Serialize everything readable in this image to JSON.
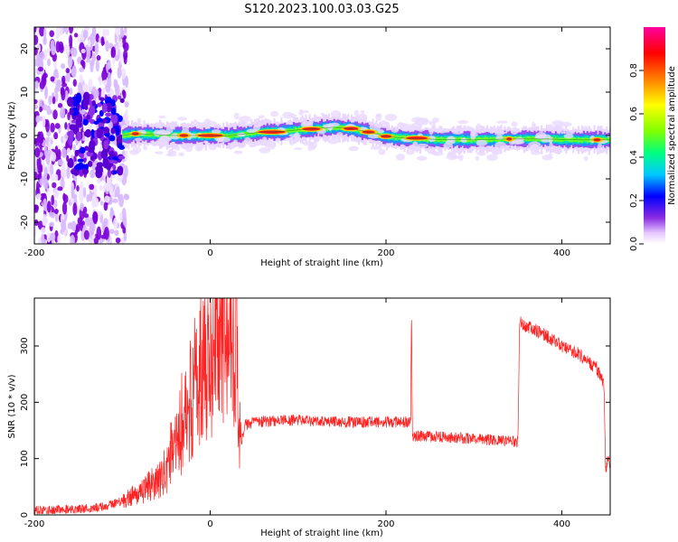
{
  "figure": {
    "title": "S120.2023.100.03.03.G25"
  },
  "chart_data": [
    {
      "type": "heatmap",
      "xlabel": "Height of straight line (km)",
      "ylabel": "Frequency (Hz)",
      "xlim": [
        -200,
        455
      ],
      "ylim": [
        -25,
        25
      ],
      "x_ticks": [
        -200,
        0,
        200,
        400
      ],
      "y_ticks": [
        -20,
        -10,
        0,
        10,
        20
      ],
      "colorbar": {
        "label": "Normalized spectral amplitude",
        "range": [
          0,
          1
        ],
        "ticks": [
          0.0,
          0.2,
          0.4,
          0.6,
          0.8
        ],
        "colormap": [
          "#ffffff",
          "#e6c8ff",
          "#8a2be2",
          "#0000ff",
          "#00c8ff",
          "#00ff80",
          "#80ff00",
          "#ffff00",
          "#ff8000",
          "#ff0000",
          "#ff00a0"
        ]
      },
      "ridge": {
        "x": [
          -100,
          -90,
          -80,
          -60,
          -40,
          -20,
          0,
          20,
          40,
          60,
          80,
          100,
          120,
          140,
          160,
          180,
          200,
          220,
          240,
          260,
          280,
          300,
          320,
          340,
          360,
          380,
          400,
          420,
          440,
          455
        ],
        "y": [
          0.0,
          0.3,
          0.3,
          0.2,
          0.0,
          0.0,
          0.0,
          -0.1,
          0.4,
          0.8,
          0.9,
          1.3,
          1.6,
          1.9,
          1.6,
          0.8,
          -0.2,
          -0.6,
          -0.8,
          -0.9,
          -0.9,
          -1.0,
          -0.9,
          -0.8,
          -0.8,
          -0.8,
          -0.9,
          -1.0,
          -1.0,
          -1.0
        ]
      }
    },
    {
      "type": "line",
      "xlabel": "Height of straight line (km)",
      "ylabel": "SNR (10 * v/v)",
      "xlim": [
        -200,
        455
      ],
      "ylim": [
        0,
        385
      ],
      "x_ticks": [
        -200,
        0,
        200,
        400
      ],
      "y_ticks": [
        0,
        100,
        200,
        300
      ],
      "color": "#ff2020",
      "series": [
        {
          "x": [
            -200,
            -150,
            -120,
            -100,
            -80,
            -60,
            -50,
            -40,
            -30,
            -20,
            -10,
            0,
            10,
            20,
            30,
            32,
            35,
            40,
            50,
            100,
            150,
            200,
            228,
            229,
            230,
            232,
            250,
            300,
            350,
            352,
            355,
            360,
            380,
            400,
            420,
            440,
            448,
            450,
            452,
            455
          ],
          "y": [
            8,
            10,
            15,
            25,
            40,
            60,
            80,
            110,
            160,
            220,
            260,
            300,
            330,
            340,
            350,
            130,
            130,
            160,
            165,
            168,
            165,
            165,
            165,
            375,
            140,
            140,
            140,
            135,
            130,
            350,
            340,
            335,
            320,
            300,
            285,
            260,
            230,
            70,
            100,
            90
          ]
        }
      ]
    }
  ]
}
